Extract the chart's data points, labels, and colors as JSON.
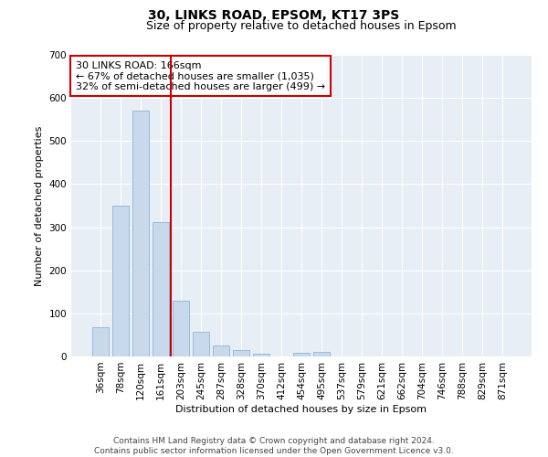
{
  "title": "30, LINKS ROAD, EPSOM, KT17 3PS",
  "subtitle": "Size of property relative to detached houses in Epsom",
  "xlabel": "Distribution of detached houses by size in Epsom",
  "ylabel": "Number of detached properties",
  "bar_color": "#c8d9ec",
  "bar_edge_color": "#7aadd4",
  "background_color": "#e8eef5",
  "categories": [
    "36sqm",
    "78sqm",
    "120sqm",
    "161sqm",
    "203sqm",
    "245sqm",
    "287sqm",
    "328sqm",
    "370sqm",
    "412sqm",
    "454sqm",
    "495sqm",
    "537sqm",
    "579sqm",
    "621sqm",
    "662sqm",
    "704sqm",
    "746sqm",
    "788sqm",
    "829sqm",
    "871sqm"
  ],
  "values": [
    68,
    350,
    570,
    312,
    130,
    57,
    25,
    14,
    7,
    0,
    8,
    10,
    0,
    0,
    0,
    0,
    0,
    0,
    0,
    0,
    0
  ],
  "ylim": [
    0,
    700
  ],
  "yticks": [
    0,
    100,
    200,
    300,
    400,
    500,
    600,
    700
  ],
  "vline_x": 3.5,
  "vline_color": "#cc0000",
  "annotation_text": "30 LINKS ROAD: 166sqm\n← 67% of detached houses are smaller (1,035)\n32% of semi-detached houses are larger (499) →",
  "annotation_box_color": "#ffffff",
  "annotation_box_edge": "#cc0000",
  "footer_text": "Contains HM Land Registry data © Crown copyright and database right 2024.\nContains public sector information licensed under the Open Government Licence v3.0.",
  "title_fontsize": 10,
  "subtitle_fontsize": 9,
  "axis_label_fontsize": 8,
  "tick_fontsize": 7.5,
  "annotation_fontsize": 8,
  "footer_fontsize": 6.5
}
